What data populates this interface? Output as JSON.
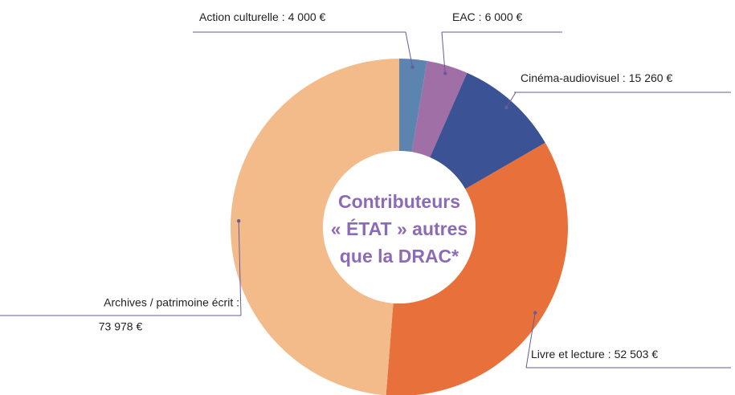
{
  "chart_data": {
    "type": "donut",
    "title": [
      "Contributeurs",
      "« ÉTAT » autres",
      "que la DRAC*"
    ],
    "categories": [
      "Action culturelle :",
      "EAC :",
      "Cinéma-audiovisuel :",
      "Livre et lecture :",
      "Archives / patrimoine écrit :"
    ],
    "values": [
      4000,
      6000,
      15260,
      52503,
      73978
    ],
    "value_labels": [
      "4 000 €",
      "6 000 €",
      "15 260 €",
      "52 503 €",
      "73 978 €"
    ],
    "colors": [
      "#5b84b1",
      "#a06fa6",
      "#3b5294",
      "#e8703a",
      "#f4bb8a"
    ]
  }
}
